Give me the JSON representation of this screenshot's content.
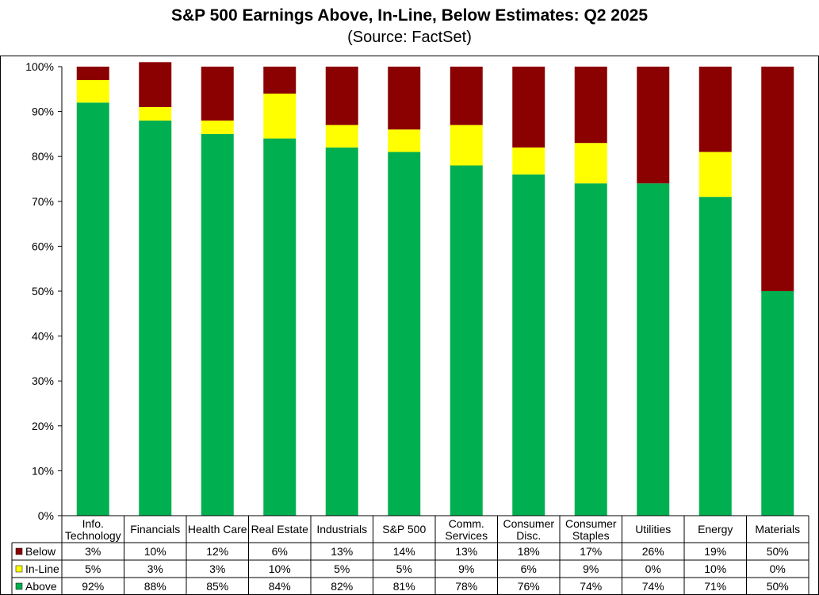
{
  "chart_data": {
    "type": "bar",
    "stacked": true,
    "title": "S&P 500 Earnings Above, In-Line, Below Estimates: Q2 2025",
    "subtitle": "(Source: FactSet)",
    "categories": [
      [
        "Info.",
        "Technology"
      ],
      [
        "Financials"
      ],
      [
        "Health Care"
      ],
      [
        "Real Estate"
      ],
      [
        "Industrials"
      ],
      [
        "S&P 500"
      ],
      [
        "Comm.",
        "Services"
      ],
      [
        "Consumer",
        "Disc."
      ],
      [
        "Consumer",
        "Staples"
      ],
      [
        "Utilities"
      ],
      [
        "Energy"
      ],
      [
        "Materials"
      ]
    ],
    "series": [
      {
        "name": "Below",
        "color": "#8b0000",
        "values": [
          3,
          10,
          12,
          6,
          13,
          14,
          13,
          18,
          17,
          26,
          19,
          50
        ],
        "labels": [
          "3%",
          "10%",
          "12%",
          "6%",
          "13%",
          "14%",
          "13%",
          "18%",
          "17%",
          "26%",
          "19%",
          "50%"
        ]
      },
      {
        "name": "In-Line",
        "color": "#ffff00",
        "values": [
          5,
          3,
          3,
          10,
          5,
          5,
          9,
          6,
          9,
          0,
          10,
          0
        ],
        "labels": [
          "5%",
          "3%",
          "3%",
          "10%",
          "5%",
          "5%",
          "9%",
          "6%",
          "9%",
          "0%",
          "10%",
          "0%"
        ]
      },
      {
        "name": "Above",
        "color": "#00b050",
        "values": [
          92,
          88,
          85,
          84,
          82,
          81,
          78,
          76,
          74,
          74,
          71,
          50
        ],
        "labels": [
          "92%",
          "88%",
          "85%",
          "84%",
          "82%",
          "81%",
          "78%",
          "76%",
          "74%",
          "74%",
          "71%",
          "50%"
        ]
      }
    ],
    "stack_order_bottom_to_top": [
      "Above",
      "In-Line",
      "Below"
    ],
    "ylim": [
      0,
      100
    ],
    "yticks": [
      "0%",
      "10%",
      "20%",
      "30%",
      "40%",
      "50%",
      "60%",
      "70%",
      "80%",
      "90%",
      "100%"
    ],
    "grid": false,
    "legend": "data-table"
  }
}
